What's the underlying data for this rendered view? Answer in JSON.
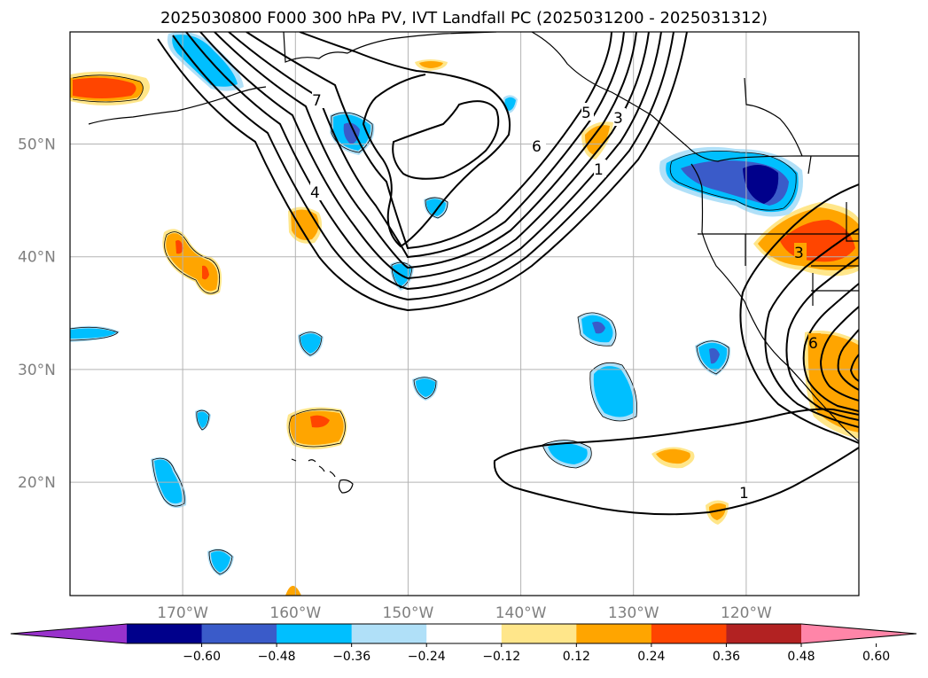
{
  "title": "2025030800 F000 300 hPa PV, IVT Landfall PC (2025031200 - 2025031312)",
  "map": {
    "lon_range": [
      -180,
      -110
    ],
    "lat_range": [
      10,
      60
    ],
    "grid": true,
    "lat_ticks": [
      {
        "lat": 50,
        "label": "50°N"
      },
      {
        "lat": 40,
        "label": "40°N"
      },
      {
        "lat": 30,
        "label": "30°N"
      },
      {
        "lat": 20,
        "label": "20°N"
      }
    ],
    "lon_ticks": [
      {
        "lon": -170,
        "label": "170°W"
      },
      {
        "lon": -160,
        "label": "160°W"
      },
      {
        "lon": -150,
        "label": "150°W"
      },
      {
        "lon": -140,
        "label": "140°W"
      },
      {
        "lon": -130,
        "label": "130°W"
      },
      {
        "lon": -120,
        "label": "120°W"
      }
    ],
    "contour_labels": [
      "7",
      "5",
      "3",
      "6",
      "1",
      "4",
      "3",
      "6",
      "1"
    ]
  },
  "colorbar": {
    "ticks": [
      "−0.60",
      "−0.48",
      "−0.36",
      "−0.24",
      "−0.12",
      "0.12",
      "0.24",
      "0.36",
      "0.48",
      "0.60"
    ],
    "colors": [
      "#9932cc",
      "#00008b",
      "#3a5bc9",
      "#00bfff",
      "#b0e0f8",
      "#ffffff",
      "#ffe68a",
      "#ffa500",
      "#ff4500",
      "#b22222",
      "#ff85a8"
    ]
  }
}
